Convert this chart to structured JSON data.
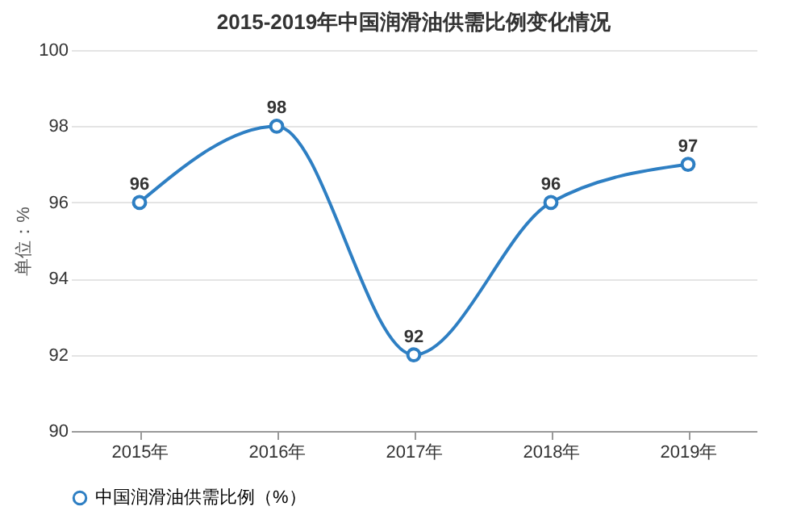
{
  "chart_data": {
    "type": "line",
    "title": "2015-2019年中国润滑油供需比例变化情况",
    "ylabel": "单位：%",
    "categories": [
      "2015年",
      "2016年",
      "2017年",
      "2018年",
      "2019年"
    ],
    "series": [
      {
        "name": "中国润滑油供需比例（%）",
        "color": "#2e7fc3",
        "values": [
          96,
          98,
          92,
          96,
          97
        ]
      }
    ],
    "ylim": [
      90,
      100
    ],
    "yticks": [
      90,
      92,
      94,
      96,
      98,
      100
    ],
    "grid": "y",
    "legend": "bottom",
    "marker": "circle",
    "line_style": "solid",
    "data_labels": true
  }
}
